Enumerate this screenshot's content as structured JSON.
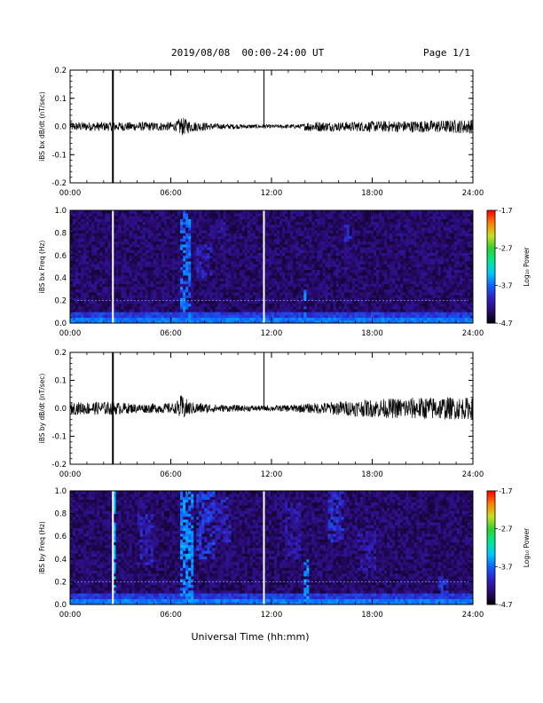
{
  "header": {
    "title": "2019/08/08  00:00-24:00 UT",
    "page": "Page 1/1"
  },
  "colors": {
    "background": "#ffffff",
    "trace": "#000000",
    "spectrogram_base": "#2a0a6e",
    "annotation_line": "#ffffff"
  },
  "colorbar": {
    "label": "Log₁₀ Power",
    "ticks": [
      "-1.7",
      "-2.7",
      "-3.7",
      "-4.7"
    ],
    "range": [
      -4.7,
      -1.7
    ],
    "scale": [
      "#000000",
      "#2a0a6e",
      "#3020c0",
      "#1060ff",
      "#00c8ff",
      "#00e890",
      "#30d030",
      "#c8e020",
      "#ff8000",
      "#ff0000"
    ]
  },
  "time_axis": {
    "xlabel": "Universal Time (hh:mm)",
    "ticks": [
      "00:00",
      "06:00",
      "12:00",
      "18:00",
      "24:00"
    ],
    "range_hours": [
      0,
      24
    ]
  },
  "chart_data": [
    {
      "type": "line",
      "ylabel": "iBS bx dB/dt (nT/sec)",
      "xlim": [
        0,
        24
      ],
      "ylim": [
        -0.2,
        0.2
      ],
      "yticks": [
        "-0.2",
        "-0.1",
        "0.0",
        "0.1",
        "0.2"
      ],
      "markers_hours": [
        2.55,
        11.55
      ],
      "baseline": 0.0,
      "amplitude_profile": [
        [
          0,
          0.01
        ],
        [
          2.5,
          0.01
        ],
        [
          6.3,
          0.01
        ],
        [
          6.6,
          0.022
        ],
        [
          7.2,
          0.012
        ],
        [
          9,
          0.006
        ],
        [
          12,
          0.004
        ],
        [
          13.8,
          0.005
        ],
        [
          14.2,
          0.012
        ],
        [
          16,
          0.01
        ],
        [
          18,
          0.012
        ],
        [
          22,
          0.014
        ],
        [
          24,
          0.016
        ]
      ]
    },
    {
      "type": "heatmap",
      "ylabel": "iBS bx Freq (Hz)",
      "xlim": [
        0,
        24
      ],
      "ylim": [
        0.0,
        1.0
      ],
      "yticks": [
        "0.0",
        "0.2",
        "0.4",
        "0.6",
        "0.8",
        "1.0"
      ],
      "value_label": "Log₁₀ Power",
      "zlim": [
        -4.7,
        -1.7
      ],
      "markers_hours": [
        2.55,
        11.55
      ],
      "enhancements": [
        {
          "t0": 2.5,
          "t1": 2.6,
          "f0": 0.0,
          "f1": 1.0,
          "level": -3.3
        },
        {
          "t0": 6.5,
          "t1": 7.2,
          "f0": 0.0,
          "f1": 1.0,
          "level": -3.5
        },
        {
          "t0": 7.5,
          "t1": 8.5,
          "f0": 0.4,
          "f1": 0.7,
          "level": -3.9
        },
        {
          "t0": 8.8,
          "t1": 9.3,
          "f0": 0.6,
          "f1": 0.9,
          "level": -4.0
        },
        {
          "t0": 13.9,
          "t1": 14.1,
          "f0": 0.0,
          "f1": 0.3,
          "level": -3.5
        },
        {
          "t0": 16.3,
          "t1": 16.8,
          "f0": 0.72,
          "f1": 0.88,
          "level": -3.9
        }
      ],
      "lines_hz": [
        0.2
      ]
    },
    {
      "type": "line",
      "ylabel": "iBS by dB/dt (nT/sec)",
      "xlim": [
        0,
        24
      ],
      "ylim": [
        -0.2,
        0.2
      ],
      "yticks": [
        "-0.2",
        "-0.1",
        "0.0",
        "0.1",
        "0.2"
      ],
      "markers_hours": [
        2.55,
        11.55
      ],
      "baseline": 0.0,
      "amplitude_profile": [
        [
          0,
          0.014
        ],
        [
          2.5,
          0.015
        ],
        [
          4,
          0.01
        ],
        [
          6.3,
          0.012
        ],
        [
          6.6,
          0.03
        ],
        [
          7.2,
          0.014
        ],
        [
          9,
          0.008
        ],
        [
          12,
          0.006
        ],
        [
          14,
          0.01
        ],
        [
          16,
          0.016
        ],
        [
          18,
          0.02
        ],
        [
          20,
          0.024
        ],
        [
          22,
          0.026
        ],
        [
          24,
          0.024
        ]
      ]
    },
    {
      "type": "heatmap",
      "ylabel": "iBS by Freq (Hz)",
      "xlim": [
        0,
        24
      ],
      "ylim": [
        0.0,
        1.0
      ],
      "yticks": [
        "0.0",
        "0.2",
        "0.4",
        "0.6",
        "0.8",
        "1.0"
      ],
      "value_label": "Log₁₀ Power",
      "zlim": [
        -4.7,
        -1.7
      ],
      "markers_hours": [
        2.55,
        11.55
      ],
      "enhancements": [
        {
          "t0": 2.5,
          "t1": 2.7,
          "f0": 0.0,
          "f1": 1.0,
          "level": -3.2
        },
        {
          "t0": 4.0,
          "t1": 5.0,
          "f0": 0.35,
          "f1": 0.8,
          "level": -3.9
        },
        {
          "t0": 6.5,
          "t1": 7.3,
          "f0": 0.0,
          "f1": 1.0,
          "level": -3.4
        },
        {
          "t0": 7.5,
          "t1": 8.7,
          "f0": 0.4,
          "f1": 1.0,
          "level": -3.7
        },
        {
          "t0": 8.7,
          "t1": 9.6,
          "f0": 0.55,
          "f1": 0.95,
          "level": -3.9
        },
        {
          "t0": 12.8,
          "t1": 13.8,
          "f0": 0.4,
          "f1": 0.9,
          "level": -4.0
        },
        {
          "t0": 14.0,
          "t1": 14.3,
          "f0": 0.0,
          "f1": 0.4,
          "level": -3.4
        },
        {
          "t0": 15.3,
          "t1": 16.3,
          "f0": 0.55,
          "f1": 1.0,
          "level": -3.8
        },
        {
          "t0": 17.2,
          "t1": 18.2,
          "f0": 0.3,
          "f1": 0.7,
          "level": -4.0
        },
        {
          "t0": 22.0,
          "t1": 22.5,
          "f0": 0.0,
          "f1": 0.25,
          "level": -3.8
        }
      ],
      "lines_hz": [
        0.2
      ]
    }
  ]
}
